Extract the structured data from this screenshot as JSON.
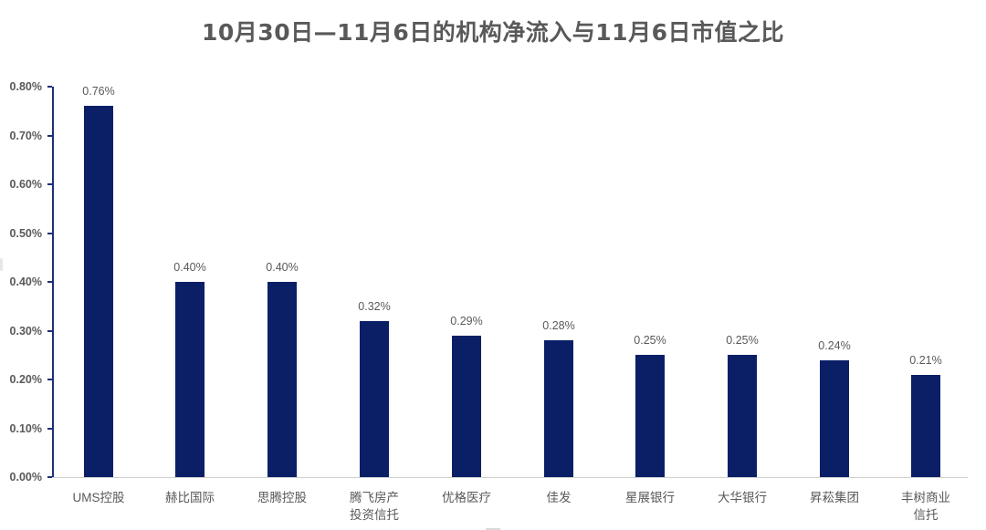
{
  "chart_data": {
    "type": "bar",
    "title": "10月30日—11月6日的机构净流入与11月6日市值之比",
    "xlabel": "",
    "ylabel": "",
    "ylim": [
      0,
      0.008
    ],
    "yticks": [
      "0.00%",
      "0.10%",
      "0.20%",
      "0.30%",
      "0.40%",
      "0.50%",
      "0.60%",
      "0.70%",
      "0.80%"
    ],
    "grid": false,
    "legend": null,
    "categories": [
      "UMS控股",
      "赫比国际",
      "思腾控股",
      "腾飞房产\n投资信托",
      "优格医疗",
      "佳发",
      "星展银行",
      "大华银行",
      "昇菘集团",
      "丰树商业\n信托"
    ],
    "values": [
      0.0076,
      0.004,
      0.004,
      0.0032,
      0.0029,
      0.0028,
      0.0025,
      0.0025,
      0.0024,
      0.0021
    ],
    "value_labels": [
      "0.76%",
      "0.40%",
      "0.40%",
      "0.32%",
      "0.29%",
      "0.28%",
      "0.25%",
      "0.25%",
      "0.24%",
      "0.21%"
    ],
    "colors": {
      "bar": "#0a1f66",
      "axis": "#1f2f7a",
      "text": "#595959"
    }
  }
}
